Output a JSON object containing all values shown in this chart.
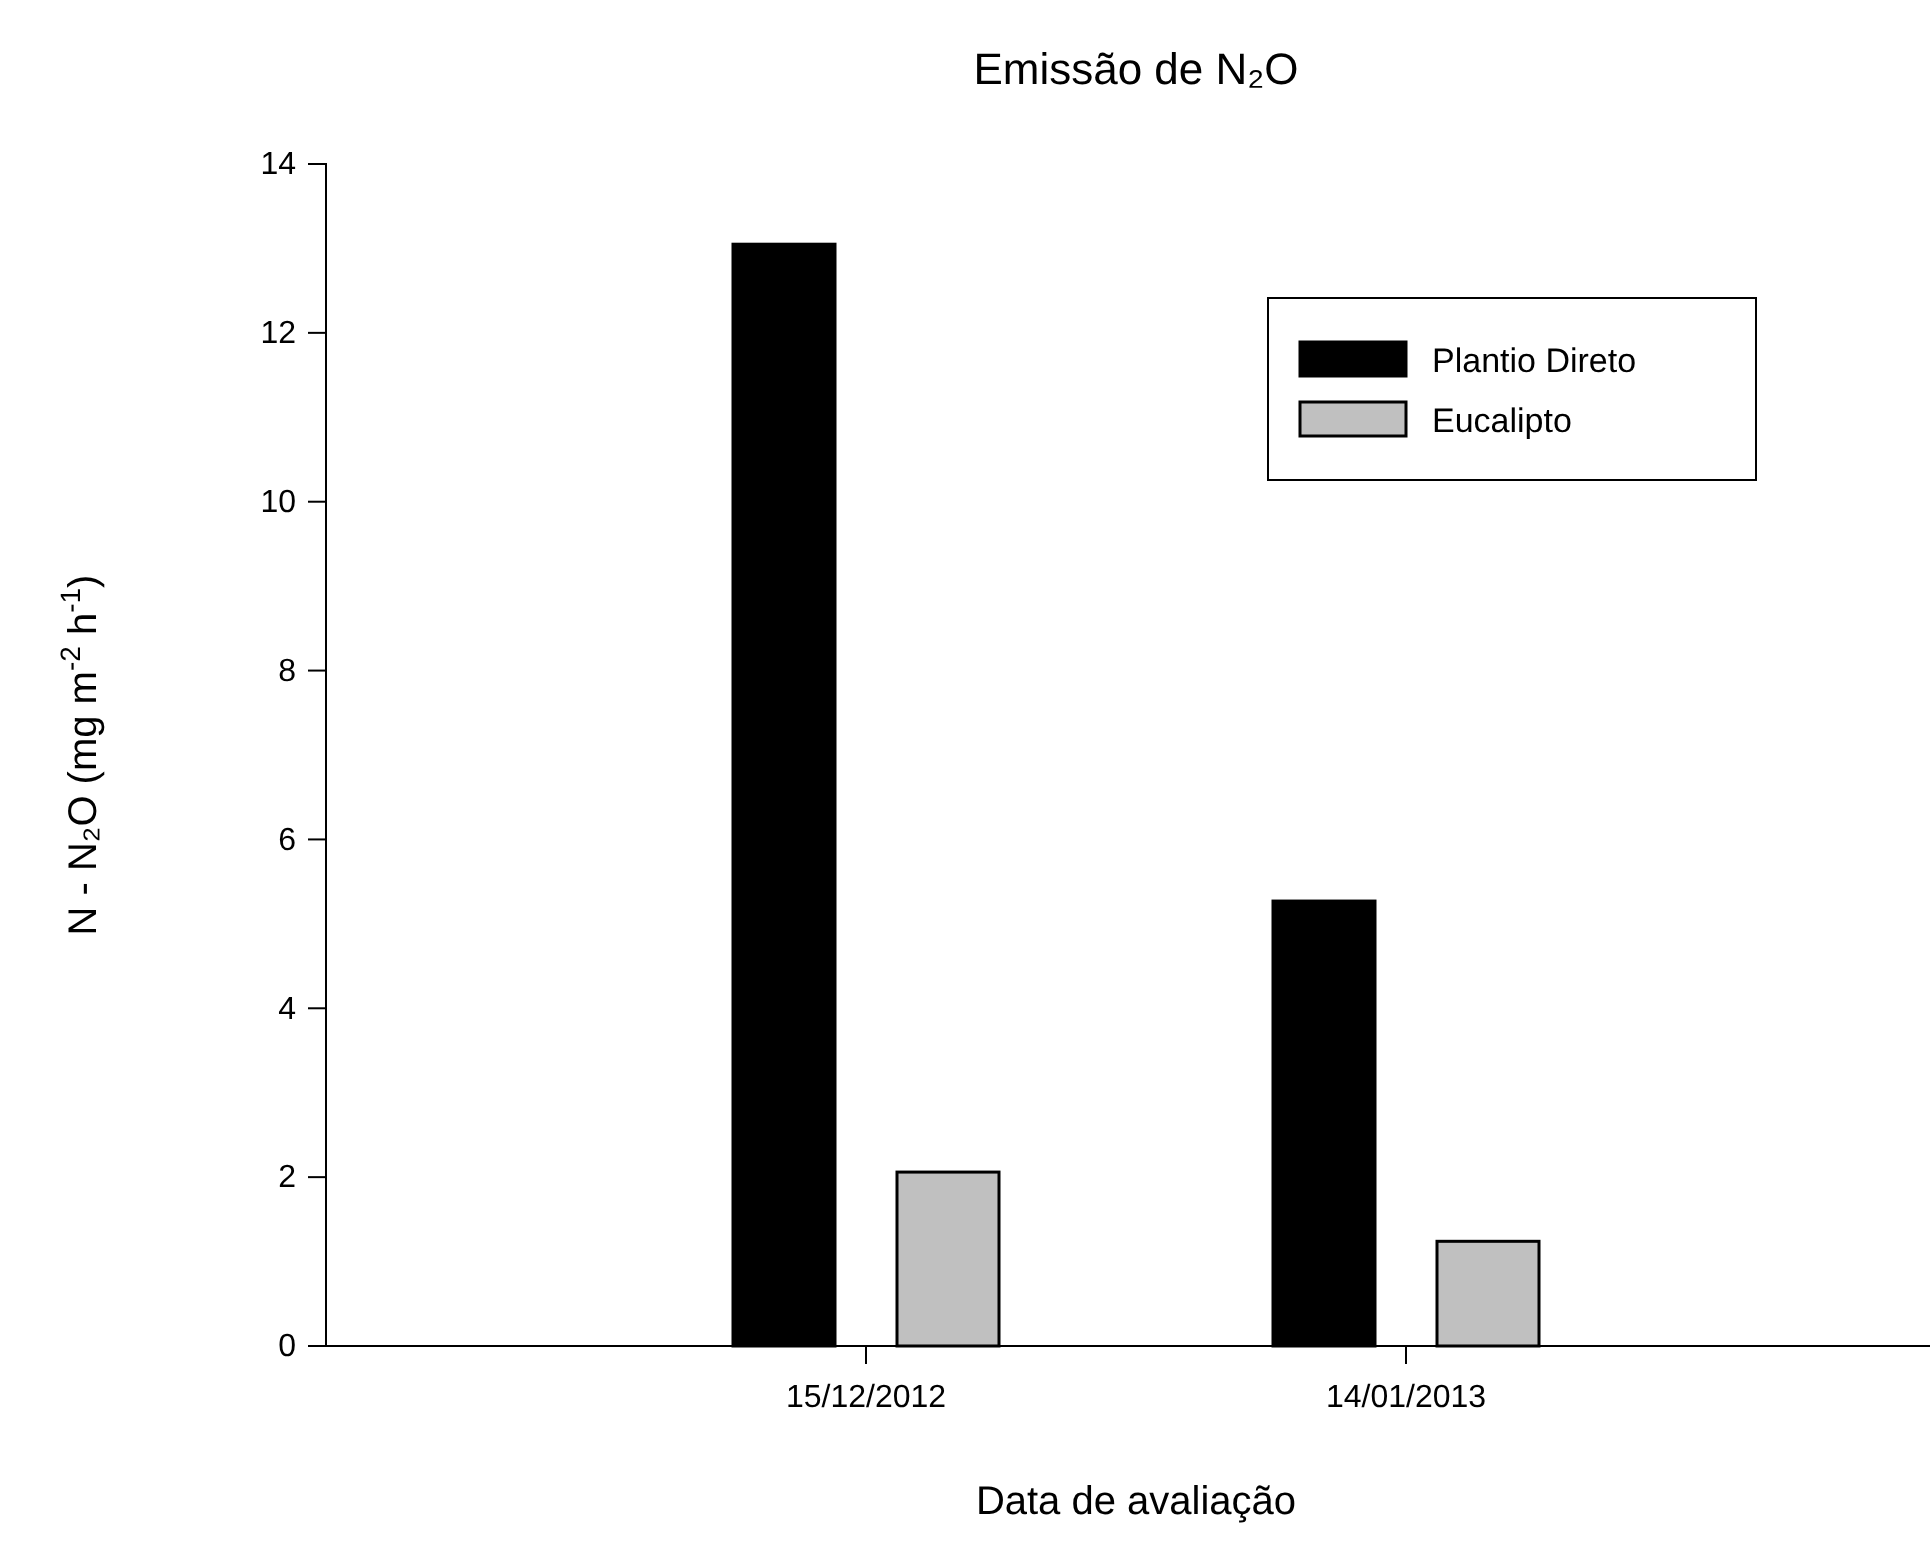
{
  "chart_data": {
    "type": "bar",
    "title": "Emissão de N₂O",
    "xlabel": "Data de avaliação",
    "ylabel": "N - N₂O  (mg m$^{-2}$ h$^{-1}$)",
    "categories": [
      "15/12/2012",
      "14/01/2013"
    ],
    "series": [
      {
        "name": "Plantio Direto",
        "color": "#000000",
        "values": [
          13.05,
          5.27
        ]
      },
      {
        "name": "Eucalipto",
        "color": "#c0c0c0",
        "values": [
          2.06,
          1.24
        ]
      }
    ],
    "ylim": [
      0,
      14
    ],
    "yticks": [
      0,
      2,
      4,
      6,
      8,
      10,
      12,
      14
    ],
    "grid": false,
    "legend": "top right"
  }
}
